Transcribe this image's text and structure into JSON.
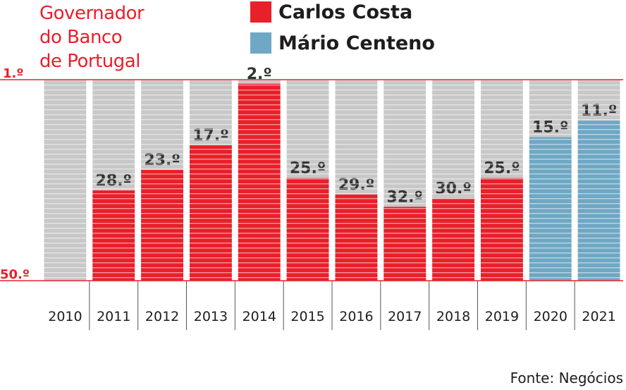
{
  "title_lines": [
    "Governador",
    "do Banco",
    "de Portugal"
  ],
  "legend": [
    {
      "label": "Carlos Costa",
      "color": "#e8202a"
    },
    {
      "label": "Mário Centeno",
      "color": "#6fa8c4"
    }
  ],
  "source": "Fonte: Negócios",
  "colors": {
    "background_column": "#c8c8c8",
    "accent": "#e8202a",
    "grid_line": "#ffffff"
  },
  "chart_data": {
    "type": "bar",
    "y_axis": {
      "reversed": true,
      "range": [
        1,
        50
      ],
      "tick_labels": [
        "1.º",
        "50.º"
      ]
    },
    "categories": [
      "2010",
      "2011",
      "2012",
      "2013",
      "2014",
      "2015",
      "2016",
      "2017",
      "2018",
      "2019",
      "2020",
      "2021"
    ],
    "values": [
      null,
      28,
      23,
      17,
      2,
      25,
      29,
      32,
      30,
      25,
      15,
      11
    ],
    "value_labels": [
      "",
      "28.º",
      "23.º",
      "17.º",
      "2.º",
      "25.º",
      "29.º",
      "32.º",
      "30.º",
      "25.º",
      "15.º",
      "11.º"
    ],
    "governor": [
      null,
      "Carlos Costa",
      "Carlos Costa",
      "Carlos Costa",
      "Carlos Costa",
      "Carlos Costa",
      "Carlos Costa",
      "Carlos Costa",
      "Carlos Costa",
      "Carlos Costa",
      "Mário Centeno",
      "Mário Centeno"
    ]
  }
}
